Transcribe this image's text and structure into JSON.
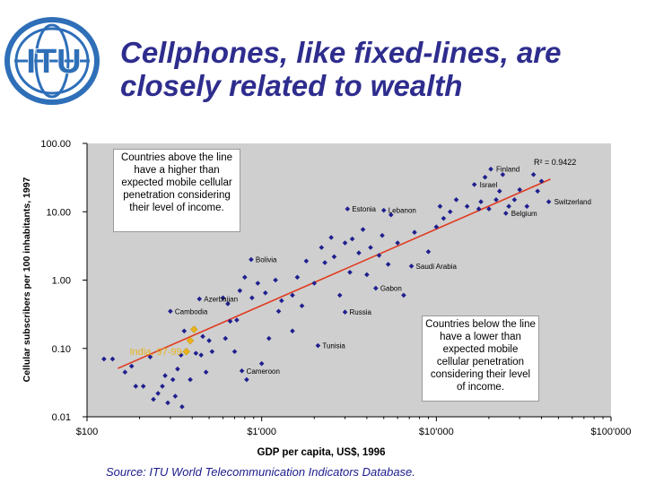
{
  "logo": {
    "text": "ITU",
    "icon": "itu-globe-logo"
  },
  "title": "Cellphones, like fixed-lines, are closely related to wealth",
  "source": "Source: ITU World Telecommunication Indicators Database.",
  "annotations": {
    "above": "Countries above the line have a higher than expected mobile cellular penetration considering their level of income.",
    "below": "Countries below the line have a lower than expected mobile cellular penetration considering their level of income.",
    "r_squared": "R² = 0.9422"
  },
  "colors": {
    "title": "#2e2d8e",
    "points": "#1f1f8f",
    "trendline": "#e03a1e",
    "india": "#e8b21c",
    "plot_bg": "#cfcfcf"
  },
  "chart_data": {
    "type": "scatter",
    "xlabel": "GDP per capita, US$, 1996",
    "ylabel": "Cellular subscribers per 100 inhabitants, 1997",
    "xscale": "log",
    "yscale": "log",
    "xlim": [
      100,
      100000
    ],
    "ylim": [
      0.01,
      100
    ],
    "xticks": [
      {
        "value": 100,
        "label": "$100"
      },
      {
        "value": 1000,
        "label": "$1'000"
      },
      {
        "value": 10000,
        "label": "$10'000"
      },
      {
        "value": 100000,
        "label": "$100'000"
      }
    ],
    "yticks": [
      {
        "value": 0.01,
        "label": "0.01"
      },
      {
        "value": 0.1,
        "label": "0.10"
      },
      {
        "value": 1,
        "label": "1.00"
      },
      {
        "value": 10,
        "label": "10.00"
      },
      {
        "value": 100,
        "label": "100.00"
      }
    ],
    "grid": false,
    "trendline": {
      "x": [
        150,
        45000
      ],
      "y": [
        0.051,
        30
      ]
    },
    "labeled_points": [
      {
        "label": "Finland",
        "x": 20500,
        "y": 42
      },
      {
        "label": "Israel",
        "x": 16500,
        "y": 25
      },
      {
        "label": "Switzerland",
        "x": 44000,
        "y": 14
      },
      {
        "label": "Belgium",
        "x": 25000,
        "y": 9.5
      },
      {
        "label": "Estonia",
        "x": 3100,
        "y": 11
      },
      {
        "label": "Lebanon",
        "x": 5000,
        "y": 10.5
      },
      {
        "label": "Bolivia",
        "x": 870,
        "y": 2.0
      },
      {
        "label": "Saudi Arabia",
        "x": 7200,
        "y": 1.6
      },
      {
        "label": "Gabon",
        "x": 4500,
        "y": 0.76
      },
      {
        "label": "Azerbaijan",
        "x": 440,
        "y": 0.53
      },
      {
        "label": "Cambodia",
        "x": 300,
        "y": 0.35
      },
      {
        "label": "Russia",
        "x": 3000,
        "y": 0.34
      },
      {
        "label": "Tunisia",
        "x": 2100,
        "y": 0.11
      },
      {
        "label": "Cameroon",
        "x": 770,
        "y": 0.047
      }
    ],
    "india": {
      "label": "India, 97-99",
      "x": [
        370,
        390,
        410
      ],
      "y": [
        0.09,
        0.13,
        0.19
      ]
    },
    "points": [
      {
        "x": 125,
        "y": 0.07
      },
      {
        "x": 140,
        "y": 0.07
      },
      {
        "x": 165,
        "y": 0.045
      },
      {
        "x": 180,
        "y": 0.055
      },
      {
        "x": 190,
        "y": 0.028
      },
      {
        "x": 210,
        "y": 0.028
      },
      {
        "x": 230,
        "y": 0.075
      },
      {
        "x": 240,
        "y": 0.018
      },
      {
        "x": 255,
        "y": 0.022
      },
      {
        "x": 270,
        "y": 0.028
      },
      {
        "x": 280,
        "y": 0.04
      },
      {
        "x": 290,
        "y": 0.016
      },
      {
        "x": 310,
        "y": 0.035
      },
      {
        "x": 320,
        "y": 0.02
      },
      {
        "x": 330,
        "y": 0.05
      },
      {
        "x": 345,
        "y": 0.08
      },
      {
        "x": 350,
        "y": 0.014
      },
      {
        "x": 360,
        "y": 0.18
      },
      {
        "x": 390,
        "y": 0.035
      },
      {
        "x": 420,
        "y": 0.085
      },
      {
        "x": 450,
        "y": 0.08
      },
      {
        "x": 460,
        "y": 0.15
      },
      {
        "x": 480,
        "y": 0.045
      },
      {
        "x": 500,
        "y": 0.13
      },
      {
        "x": 520,
        "y": 0.09
      },
      {
        "x": 600,
        "y": 0.55
      },
      {
        "x": 620,
        "y": 0.14
      },
      {
        "x": 640,
        "y": 0.45
      },
      {
        "x": 660,
        "y": 0.25
      },
      {
        "x": 700,
        "y": 0.09
      },
      {
        "x": 720,
        "y": 0.26
      },
      {
        "x": 750,
        "y": 0.7
      },
      {
        "x": 800,
        "y": 1.1
      },
      {
        "x": 820,
        "y": 0.035
      },
      {
        "x": 880,
        "y": 0.55
      },
      {
        "x": 950,
        "y": 0.9
      },
      {
        "x": 1000,
        "y": 0.06
      },
      {
        "x": 1050,
        "y": 0.65
      },
      {
        "x": 1100,
        "y": 0.14
      },
      {
        "x": 1200,
        "y": 1.0
      },
      {
        "x": 1250,
        "y": 0.35
      },
      {
        "x": 1300,
        "y": 0.5
      },
      {
        "x": 1500,
        "y": 0.18
      },
      {
        "x": 1500,
        "y": 0.6
      },
      {
        "x": 1600,
        "y": 1.1
      },
      {
        "x": 1700,
        "y": 0.42
      },
      {
        "x": 1800,
        "y": 1.9
      },
      {
        "x": 2000,
        "y": 0.9
      },
      {
        "x": 2200,
        "y": 3.0
      },
      {
        "x": 2300,
        "y": 1.8
      },
      {
        "x": 2500,
        "y": 4.2
      },
      {
        "x": 2600,
        "y": 2.2
      },
      {
        "x": 2800,
        "y": 0.6
      },
      {
        "x": 3000,
        "y": 3.5
      },
      {
        "x": 3200,
        "y": 1.3
      },
      {
        "x": 3300,
        "y": 4.0
      },
      {
        "x": 3600,
        "y": 2.5
      },
      {
        "x": 3800,
        "y": 5.5
      },
      {
        "x": 4000,
        "y": 1.2
      },
      {
        "x": 4200,
        "y": 3.0
      },
      {
        "x": 4700,
        "y": 2.3
      },
      {
        "x": 4900,
        "y": 4.5
      },
      {
        "x": 5300,
        "y": 1.7
      },
      {
        "x": 5500,
        "y": 9.0
      },
      {
        "x": 6000,
        "y": 3.5
      },
      {
        "x": 6500,
        "y": 0.6
      },
      {
        "x": 7500,
        "y": 5.0
      },
      {
        "x": 9000,
        "y": 2.6
      },
      {
        "x": 10000,
        "y": 6.0
      },
      {
        "x": 10500,
        "y": 12
      },
      {
        "x": 11000,
        "y": 8.0
      },
      {
        "x": 12000,
        "y": 10
      },
      {
        "x": 13000,
        "y": 15
      },
      {
        "x": 15000,
        "y": 12
      },
      {
        "x": 17500,
        "y": 11
      },
      {
        "x": 18000,
        "y": 14
      },
      {
        "x": 19000,
        "y": 32
      },
      {
        "x": 20000,
        "y": 11
      },
      {
        "x": 22000,
        "y": 15
      },
      {
        "x": 23000,
        "y": 20
      },
      {
        "x": 24000,
        "y": 35
      },
      {
        "x": 26000,
        "y": 12
      },
      {
        "x": 28000,
        "y": 15
      },
      {
        "x": 30000,
        "y": 21
      },
      {
        "x": 33000,
        "y": 12
      },
      {
        "x": 36000,
        "y": 35
      },
      {
        "x": 38000,
        "y": 20
      },
      {
        "x": 40000,
        "y": 28
      }
    ]
  }
}
